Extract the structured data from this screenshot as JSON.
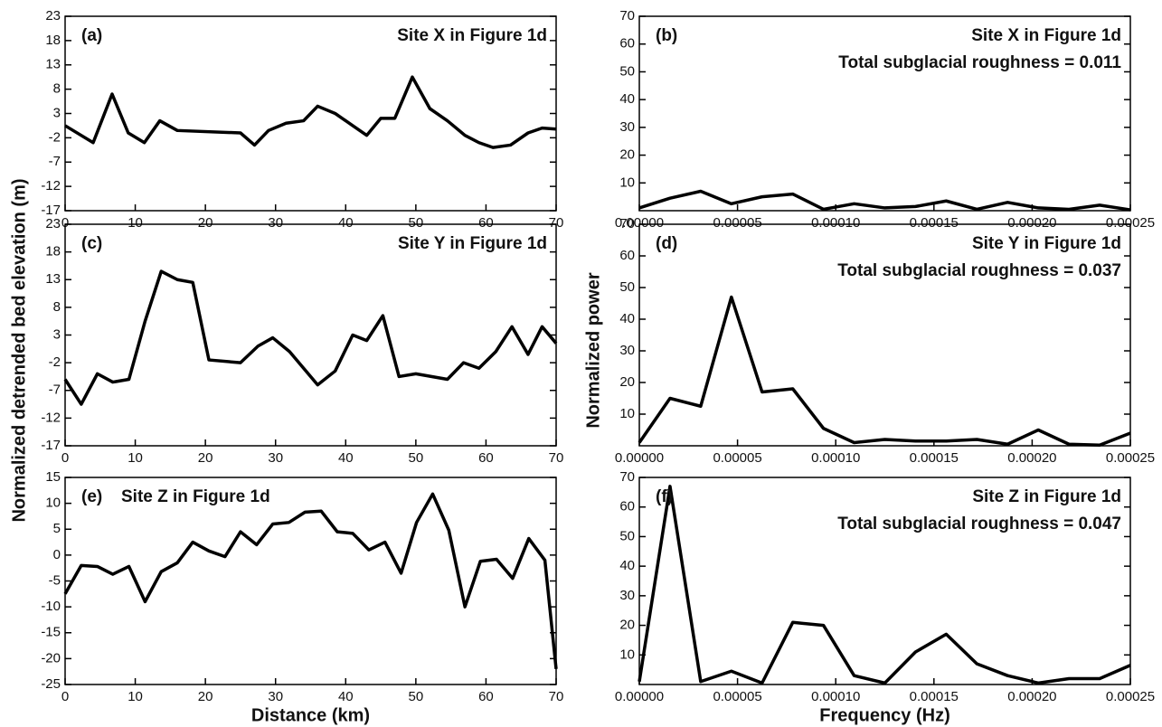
{
  "chart_data": [
    {
      "type": "line",
      "panel_label": "(a)",
      "title": "Site X in Figure 1d",
      "color": "#000000",
      "x": [
        0,
        4,
        6.7,
        9,
        11.3,
        13.5,
        16,
        25,
        27,
        29,
        31.5,
        34,
        36,
        38.5,
        41,
        43,
        45,
        47,
        49.5,
        52,
        54.5,
        57,
        59,
        61,
        63.5,
        66,
        68,
        70
      ],
      "values": [
        0.5,
        -3,
        7,
        -1,
        -3,
        1.5,
        -0.5,
        -1,
        -3.5,
        -0.5,
        1,
        1.5,
        4.5,
        3,
        0.5,
        -1.5,
        2,
        2,
        10.5,
        4,
        1.5,
        -1.5,
        -3,
        -4,
        -3.5,
        -1,
        0,
        -0.2
      ],
      "xlim": [
        0,
        70
      ],
      "xticks": [
        0,
        10,
        20,
        30,
        40,
        50,
        60,
        70
      ],
      "ylim": [
        -17,
        23
      ],
      "yticks": [
        -17,
        -12,
        -7,
        -2,
        3,
        8,
        13,
        18,
        23
      ]
    },
    {
      "type": "line",
      "panel_label": "(b)",
      "title": "Site X in Figure 1d",
      "annotation": "Total subglacial roughness = 0.011",
      "color": "#000000",
      "x": [
        0,
        1.5625e-05,
        3.125e-05,
        4.6875e-05,
        6.25e-05,
        7.8125e-05,
        9.375e-05,
        0.000109375,
        0.000125,
        0.000140625,
        0.00015625,
        0.000171875,
        0.0001875,
        0.000203125,
        0.00021875,
        0.000234375,
        0.00025
      ],
      "values": [
        1,
        4.5,
        7,
        2.5,
        5,
        6,
        0.5,
        2.5,
        1,
        1.5,
        3.5,
        0.5,
        3,
        1,
        0.5,
        2,
        0.3
      ],
      "xlim": [
        0,
        0.00025
      ],
      "xticks": [
        {
          "value": 0,
          "label": "0.00000"
        },
        {
          "value": 5e-05,
          "label": "0.00005"
        },
        {
          "value": 0.0001,
          "label": "0.00010"
        },
        {
          "value": 0.00015,
          "label": "0.00015"
        },
        {
          "value": 0.0002,
          "label": "0.00020"
        },
        {
          "value": 0.00025,
          "label": "0.00025"
        }
      ],
      "ylim": [
        0,
        70
      ],
      "yticks": [
        10,
        20,
        30,
        40,
        50,
        60,
        70
      ]
    },
    {
      "type": "line",
      "panel_label": "(c)",
      "title": "Site Y in Figure 1d",
      "ylabel": "Normalized detrended bed elevation (m)",
      "color": "#000000",
      "x": [
        0,
        2.3,
        4.6,
        6.8,
        9.1,
        11.4,
        13.7,
        16,
        18.2,
        20.5,
        25,
        27.5,
        29.6,
        32,
        34,
        36,
        38.5,
        41,
        43,
        45.3,
        47.6,
        50,
        54.5,
        56.8,
        59,
        61.4,
        63.7,
        66,
        68,
        70
      ],
      "values": [
        -5,
        -9.5,
        -4,
        -5.5,
        -5,
        5.5,
        14.5,
        13,
        12.5,
        -1.5,
        -2,
        1,
        2.5,
        0,
        -3,
        -6,
        -3.5,
        3,
        2,
        6.5,
        -4.5,
        -4,
        -5,
        -2,
        -3,
        0,
        4.5,
        -0.5,
        4.5,
        1.5
      ],
      "xlim": [
        0,
        70
      ],
      "xticks": [
        0,
        10,
        20,
        30,
        40,
        50,
        60,
        70
      ],
      "ylim": [
        -17,
        23
      ],
      "yticks": [
        -17,
        -12,
        -7,
        -2,
        3,
        8,
        13,
        18,
        23
      ]
    },
    {
      "type": "line",
      "panel_label": "(d)",
      "title": "Site Y in Figure 1d",
      "annotation": "Total subglacial roughness = 0.037",
      "ylabel": "Normalized power",
      "color": "#000000",
      "x": [
        0,
        1.5625e-05,
        3.125e-05,
        4.6875e-05,
        6.25e-05,
        7.8125e-05,
        9.375e-05,
        0.000109375,
        0.000125,
        0.000140625,
        0.00015625,
        0.000171875,
        0.0001875,
        0.000203125,
        0.00021875,
        0.000234375,
        0.00025
      ],
      "values": [
        1,
        15,
        12.5,
        47,
        17,
        18,
        5.5,
        1,
        2,
        1.5,
        1.5,
        2,
        0.5,
        5,
        0.5,
        0.2,
        4
      ],
      "xlim": [
        0,
        0.00025
      ],
      "xticks": [
        {
          "value": 0,
          "label": "0.00000"
        },
        {
          "value": 5e-05,
          "label": "0.00005"
        },
        {
          "value": 0.0001,
          "label": "0.00010"
        },
        {
          "value": 0.00015,
          "label": "0.00015"
        },
        {
          "value": 0.0002,
          "label": "0.00020"
        },
        {
          "value": 0.00025,
          "label": "0.00025"
        }
      ],
      "ylim": [
        0,
        70
      ],
      "yticks": [
        10,
        20,
        30,
        40,
        50,
        60,
        70
      ]
    },
    {
      "type": "line",
      "panel_label": "(e)",
      "title": "Site Z in Figure 1d",
      "xlabel": "Distance (km)",
      "color": "#000000",
      "x": [
        0,
        2.3,
        4.6,
        6.8,
        9.1,
        11.4,
        13.7,
        16,
        18.2,
        20.5,
        22.8,
        25,
        27.3,
        29.6,
        31.9,
        34.2,
        36.5,
        38.8,
        41,
        43.3,
        45.6,
        47.9,
        50.1,
        52.4,
        54.7,
        57,
        59.2,
        61.5,
        63.8,
        66.1,
        68.4,
        70
      ],
      "values": [
        -7.5,
        -2,
        -2.2,
        -3.7,
        -2.2,
        -9,
        -3.2,
        -1.5,
        2.5,
        0.8,
        -0.3,
        4.5,
        2,
        6,
        6.3,
        8.3,
        8.5,
        4.5,
        4.2,
        1,
        2.5,
        -3.5,
        6.3,
        11.8,
        4.8,
        -10,
        -1.2,
        -0.8,
        -4.5,
        3.2,
        -1,
        -22
      ],
      "xlim": [
        0,
        70
      ],
      "xticks": [
        0,
        10,
        20,
        30,
        40,
        50,
        60,
        70
      ],
      "ylim": [
        -25,
        15
      ],
      "yticks": [
        -25,
        -20,
        -15,
        -10,
        -5,
        0,
        5,
        10,
        15
      ]
    },
    {
      "type": "line",
      "panel_label": "(f)",
      "title": "Site Z in Figure 1d",
      "annotation": "Total subglacial roughness = 0.047",
      "xlabel": "Frequency (Hz)",
      "color": "#000000",
      "x": [
        0,
        1.5625e-05,
        3.125e-05,
        4.6875e-05,
        6.25e-05,
        7.8125e-05,
        9.375e-05,
        0.000109375,
        0.000125,
        0.000140625,
        0.00015625,
        0.000171875,
        0.0001875,
        0.000203125,
        0.00021875,
        0.000234375,
        0.00025
      ],
      "values": [
        1,
        67,
        1,
        4.5,
        0.5,
        21,
        20,
        3,
        0.5,
        11,
        17,
        7,
        3,
        0.5,
        2,
        2,
        6.5
      ],
      "xlim": [
        0,
        0.00025
      ],
      "xticks": [
        {
          "value": 0,
          "label": "0.00000"
        },
        {
          "value": 5e-05,
          "label": "0.00005"
        },
        {
          "value": 0.0001,
          "label": "0.00010"
        },
        {
          "value": 0.00015,
          "label": "0.00015"
        },
        {
          "value": 0.0002,
          "label": "0.00020"
        },
        {
          "value": 0.00025,
          "label": "0.00025"
        }
      ],
      "ylim": [
        0,
        70
      ],
      "yticks": [
        10,
        20,
        30,
        40,
        50,
        60,
        70
      ]
    }
  ]
}
